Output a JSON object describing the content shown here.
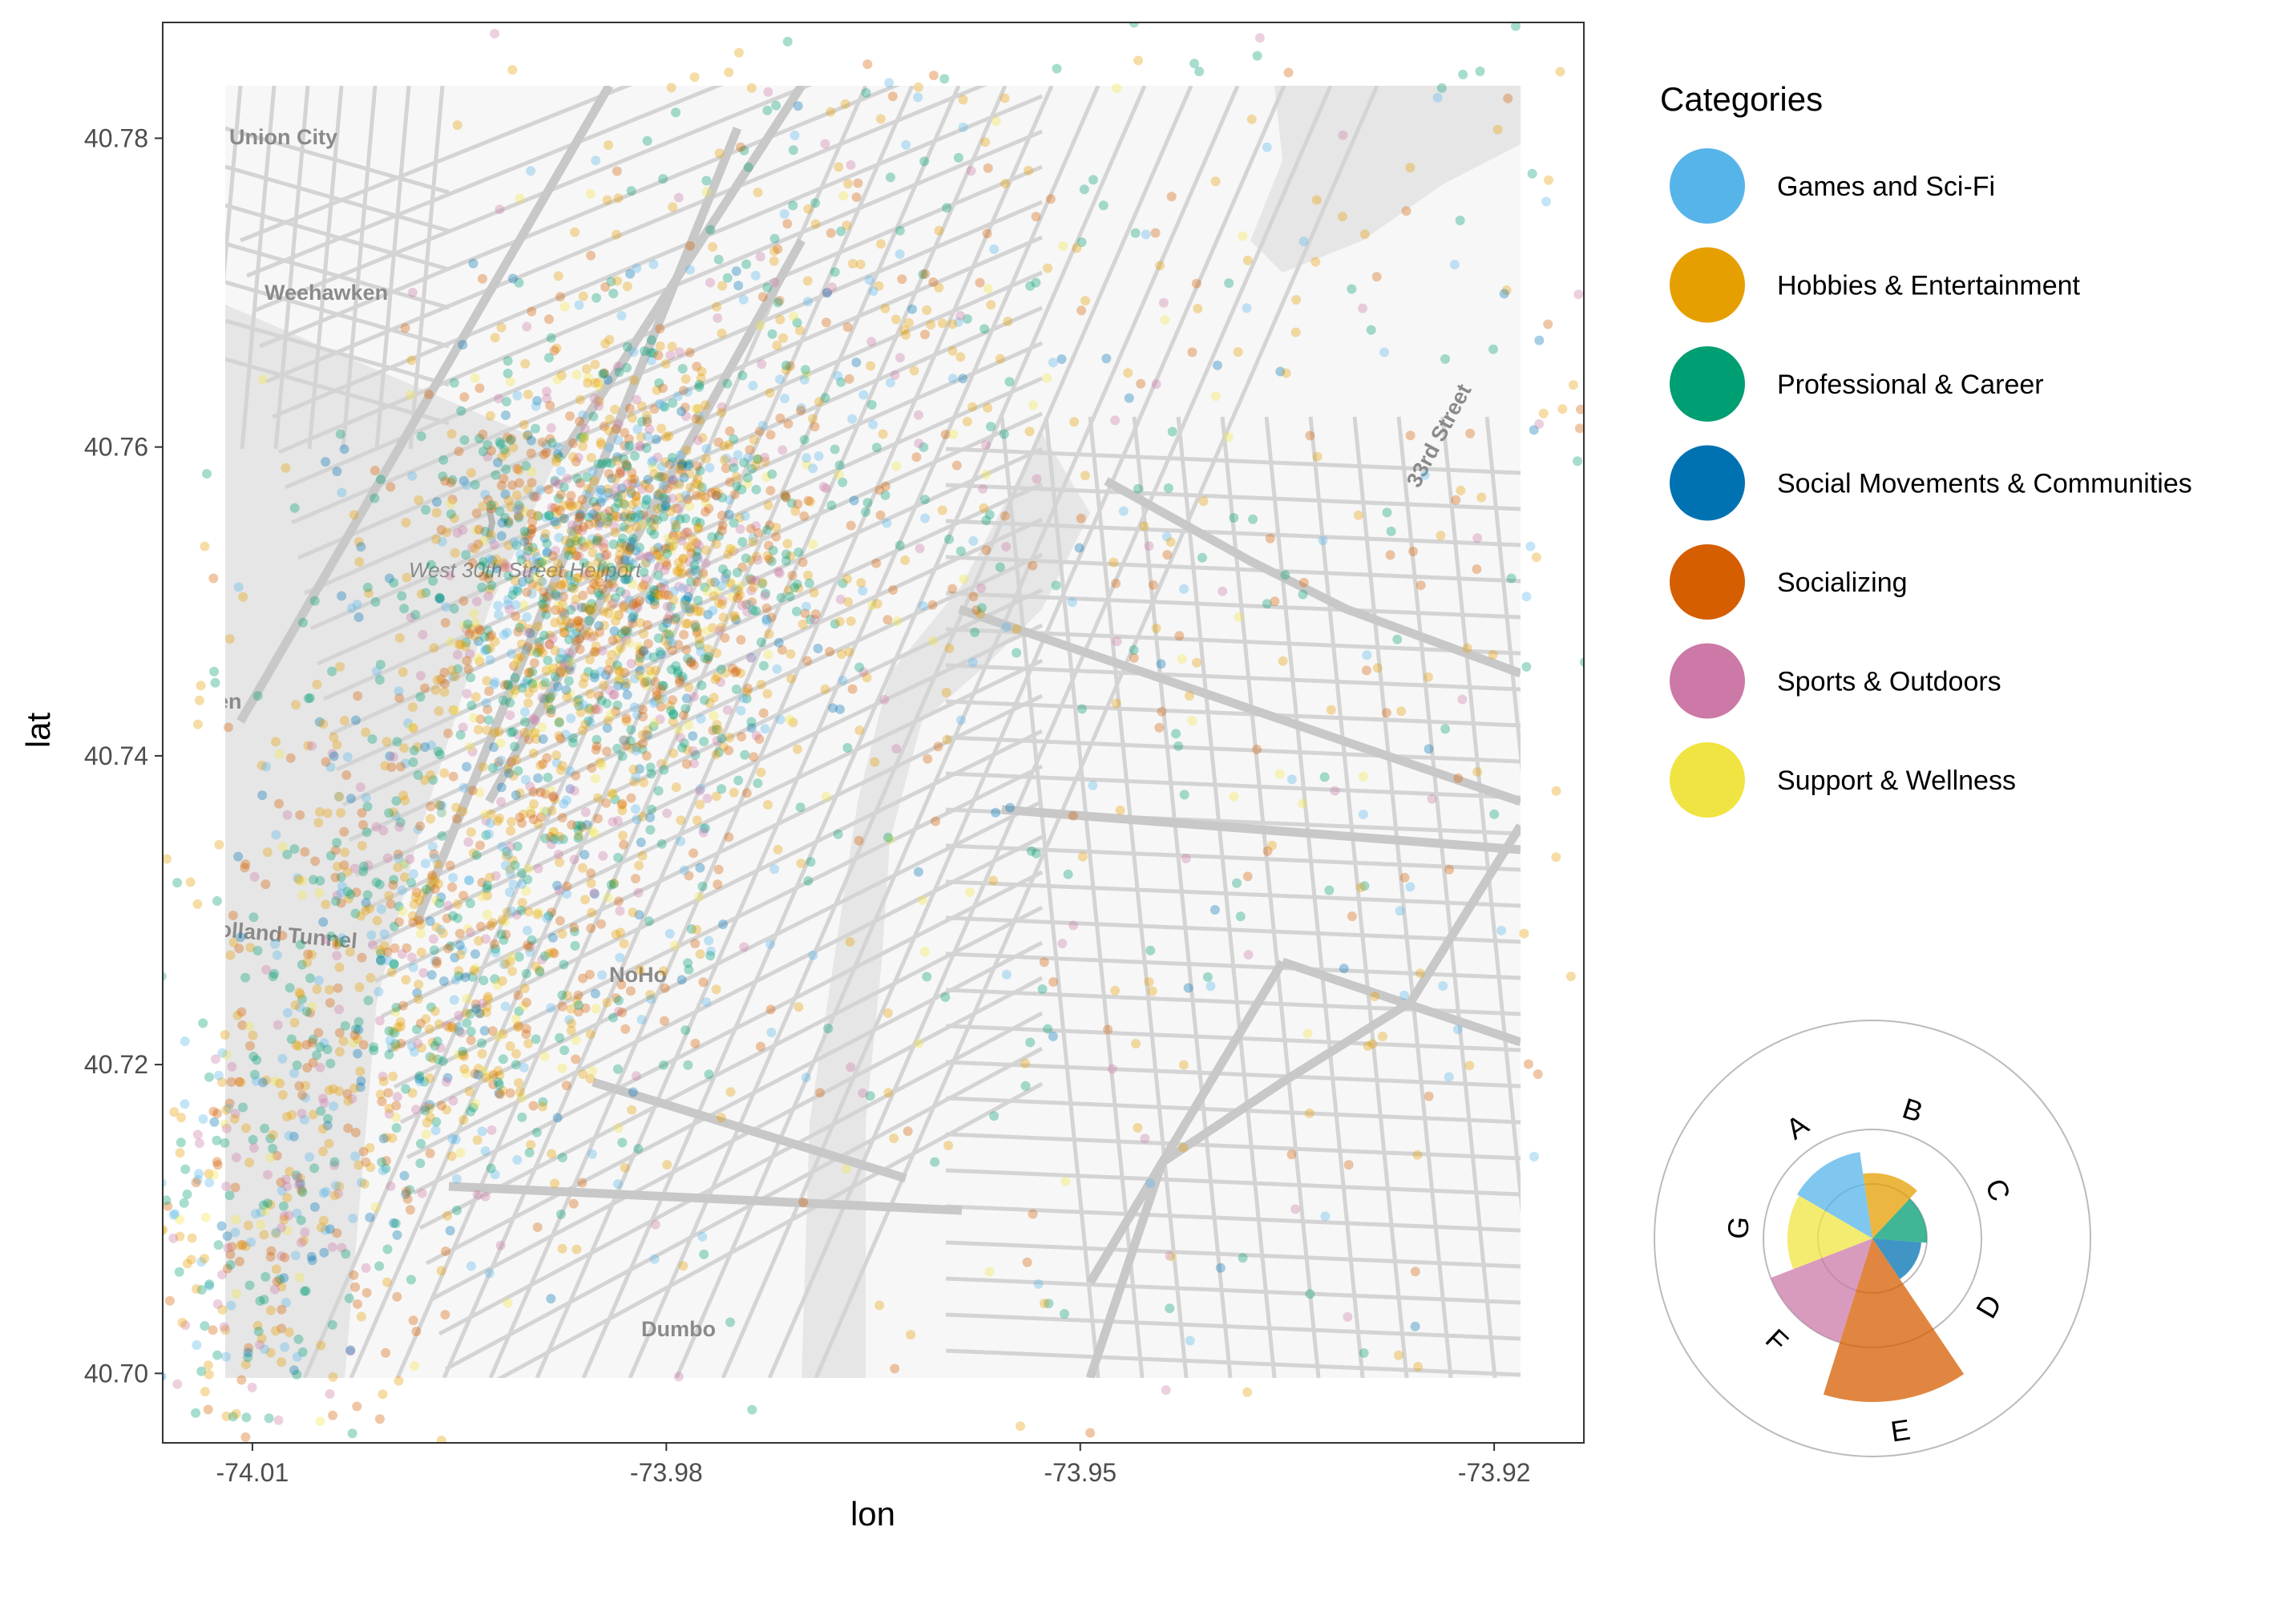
{
  "chart_data": [
    {
      "type": "scatter",
      "subtype": "geographic point map over a street basemap",
      "xlabel": "lon",
      "ylabel": "lat",
      "xlim": [
        -74.0165,
        -73.9135
      ],
      "ylim": [
        40.6955,
        40.7875
      ],
      "x_ticks": [
        -74.01,
        -73.98,
        -73.95,
        -73.92
      ],
      "x_tick_labels": [
        "-74.01",
        "-73.98",
        "-73.95",
        "-73.92"
      ],
      "y_ticks": [
        40.7,
        40.72,
        40.74,
        40.76,
        40.78
      ],
      "y_tick_labels": [
        "40.70",
        "40.72",
        "40.74",
        "40.76",
        "40.78"
      ],
      "grid": false,
      "point_alpha": 0.35,
      "basemap_labels": [
        "Union City",
        "Weehawken",
        "West 30th Street Heliport",
        "olland Tunnel",
        "NoHo",
        "Dumbo",
        "33rd Street",
        "en"
      ],
      "legend": {
        "title": "Categories",
        "placement": "right",
        "entries": [
          {
            "code": "A",
            "label": "Games and Sci-Fi",
            "color": "#56B4E9"
          },
          {
            "code": "B",
            "label": "Hobbies & Entertainment",
            "color": "#E69F00"
          },
          {
            "code": "C",
            "label": "Professional & Career",
            "color": "#009E73"
          },
          {
            "code": "D",
            "label": "Social Movements & Communities",
            "color": "#0072B2"
          },
          {
            "code": "E",
            "label": "Socializing",
            "color": "#D55E00"
          },
          {
            "code": "F",
            "label": "Sports & Outdoors",
            "color": "#CC79A7"
          },
          {
            "code": "G",
            "label": "Support & Wellness",
            "color": "#F0E442"
          }
        ]
      },
      "density_clusters": [
        {
          "lon": -73.983,
          "lat": 40.752,
          "spread_lon": 0.007,
          "spread_lat": 0.007,
          "weight": 0.34
        },
        {
          "lon": -73.991,
          "lat": 40.737,
          "spread_lon": 0.01,
          "spread_lat": 0.012,
          "weight": 0.22
        },
        {
          "lon": -74.009,
          "lat": 40.71,
          "spread_lon": 0.005,
          "spread_lat": 0.008,
          "weight": 0.09
        },
        {
          "lon": -73.998,
          "lat": 40.723,
          "spread_lon": 0.007,
          "spread_lat": 0.007,
          "weight": 0.12
        },
        {
          "lon": -73.968,
          "lat": 40.766,
          "spread_lon": 0.012,
          "spread_lat": 0.012,
          "weight": 0.1
        },
        {
          "lon": -73.948,
          "lat": 40.722,
          "spread_lon": 0.025,
          "spread_lat": 0.025,
          "weight": 0.06
        },
        {
          "lon": -73.932,
          "lat": 40.76,
          "spread_lon": 0.018,
          "spread_lat": 0.022,
          "weight": 0.07
        }
      ]
    },
    {
      "type": "rose",
      "description": "inset polar bar chart of category counts",
      "categories": [
        "A",
        "B",
        "C",
        "D",
        "E",
        "F",
        "G"
      ],
      "values": [
        0.8,
        0.6,
        0.5,
        0.45,
        1.5,
        1.0,
        0.78
      ],
      "colors": [
        "#56B4E9",
        "#E69F00",
        "#009E73",
        "#0072B2",
        "#D55E00",
        "#CC79A7",
        "#F0E442"
      ],
      "reference_circles": [
        0.5,
        1.0,
        2.0
      ],
      "grid": true
    }
  ]
}
